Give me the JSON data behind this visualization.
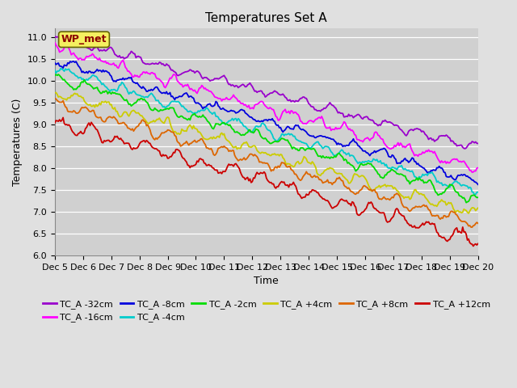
{
  "title": "Temperatures Set A",
  "ylabel": "Temperatures (C)",
  "xlabel": "Time",
  "ylim": [
    6.0,
    11.2
  ],
  "xlim": [
    0,
    360
  ],
  "fig_bg_color": "#e0e0e0",
  "plot_bg_color": "#d0d0d0",
  "wp_met_label": "WP_met",
  "wp_met_color": "#8B0000",
  "wp_met_bg": "#f5f060",
  "xtick_labels": [
    "Dec 5",
    "Dec 6",
    "Dec 7",
    "Dec 8",
    "Dec 9",
    "Dec 10",
    "Dec 11",
    "Dec 12",
    "Dec 13",
    "Dec 14",
    "Dec 15",
    "Dec 16",
    "Dec 17",
    "Dec 18",
    "Dec 19",
    "Dec 20"
  ],
  "xtick_positions": [
    0,
    24,
    48,
    72,
    96,
    120,
    144,
    168,
    192,
    216,
    240,
    264,
    288,
    312,
    336,
    360
  ],
  "series": [
    {
      "label": "TC_A -32cm",
      "color": "#9900cc",
      "start": 11.0,
      "end": 8.45,
      "noise": 0.07,
      "daily_amp": 0.07
    },
    {
      "label": "TC_A -16cm",
      "color": "#ff00ff",
      "start": 10.75,
      "end": 8.0,
      "noise": 0.09,
      "daily_amp": 0.09
    },
    {
      "label": "TC_A -8cm",
      "color": "#0000dd",
      "start": 10.48,
      "end": 7.68,
      "noise": 0.08,
      "daily_amp": 0.08
    },
    {
      "label": "TC_A -4cm",
      "color": "#00cccc",
      "start": 10.25,
      "end": 7.45,
      "noise": 0.08,
      "daily_amp": 0.08
    },
    {
      "label": "TC_A -2cm",
      "color": "#00dd00",
      "start": 10.07,
      "end": 7.3,
      "noise": 0.08,
      "daily_amp": 0.08
    },
    {
      "label": "TC_A +4cm",
      "color": "#cccc00",
      "start": 9.75,
      "end": 6.95,
      "noise": 0.09,
      "daily_amp": 0.09
    },
    {
      "label": "TC_A +8cm",
      "color": "#dd6600",
      "start": 9.5,
      "end": 6.72,
      "noise": 0.09,
      "daily_amp": 0.09
    },
    {
      "label": "TC_A +12cm",
      "color": "#cc0000",
      "start": 9.05,
      "end": 6.35,
      "noise": 0.11,
      "daily_amp": 0.11
    }
  ],
  "n_points": 361,
  "seed": 42,
  "title_fontsize": 11,
  "axis_fontsize": 9,
  "tick_fontsize": 8,
  "legend_fontsize": 8,
  "linewidth": 1.3
}
